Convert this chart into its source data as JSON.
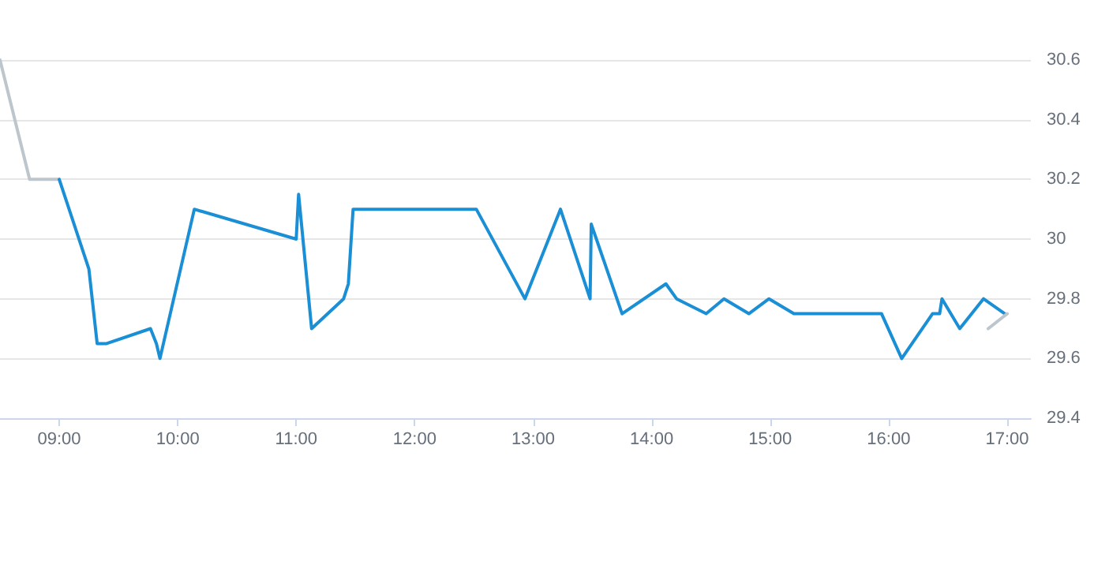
{
  "chart_data": {
    "type": "line",
    "xlim": [
      8.5,
      17.2
    ],
    "ylim": [
      29.4,
      30.6
    ],
    "xticks": [
      {
        "value": 9,
        "label": "09:00"
      },
      {
        "value": 10,
        "label": "10:00"
      },
      {
        "value": 11,
        "label": "11:00"
      },
      {
        "value": 12,
        "label": "12:00"
      },
      {
        "value": 13,
        "label": "13:00"
      },
      {
        "value": 14,
        "label": "14:00"
      },
      {
        "value": 15,
        "label": "15:00"
      },
      {
        "value": 16,
        "label": "16:00"
      },
      {
        "value": 17,
        "label": "17:00"
      }
    ],
    "yticks": [
      29.4,
      29.6,
      29.8,
      30,
      30.2,
      30.4,
      30.6
    ],
    "grid": "y",
    "marker": "none",
    "line_style": "solid",
    "series": [
      {
        "color": "#bcc6cc",
        "x": [
          8.5,
          8.75,
          9.0
        ],
        "values": [
          30.6,
          30.2,
          30.2
        ]
      },
      {
        "color": "#1a8fd6",
        "x": [
          9.0,
          9.25,
          9.32,
          9.4,
          9.77,
          9.82,
          9.85,
          10.14,
          11.0,
          11.02,
          11.13,
          11.4,
          11.44,
          11.48,
          12.52,
          12.93,
          13.23,
          13.48,
          13.49,
          13.75,
          14.12,
          14.21,
          14.46,
          14.61,
          14.82,
          14.99,
          15.2,
          15.94,
          16.11,
          16.37,
          16.43,
          16.45,
          16.6,
          16.8,
          16.98
        ],
        "values": [
          30.2,
          29.9,
          29.65,
          29.65,
          29.7,
          29.65,
          29.6,
          30.1,
          30.0,
          30.15,
          29.7,
          29.8,
          29.85,
          30.1,
          30.1,
          29.8,
          30.1,
          29.8,
          30.05,
          29.75,
          29.85,
          29.8,
          29.75,
          29.8,
          29.75,
          29.8,
          29.75,
          29.75,
          29.6,
          29.75,
          29.75,
          29.8,
          29.7,
          29.8,
          29.75
        ]
      },
      {
        "color": "#bcc6cc",
        "x": [
          16.84,
          17.0
        ],
        "values": [
          29.7,
          29.75
        ]
      }
    ]
  }
}
